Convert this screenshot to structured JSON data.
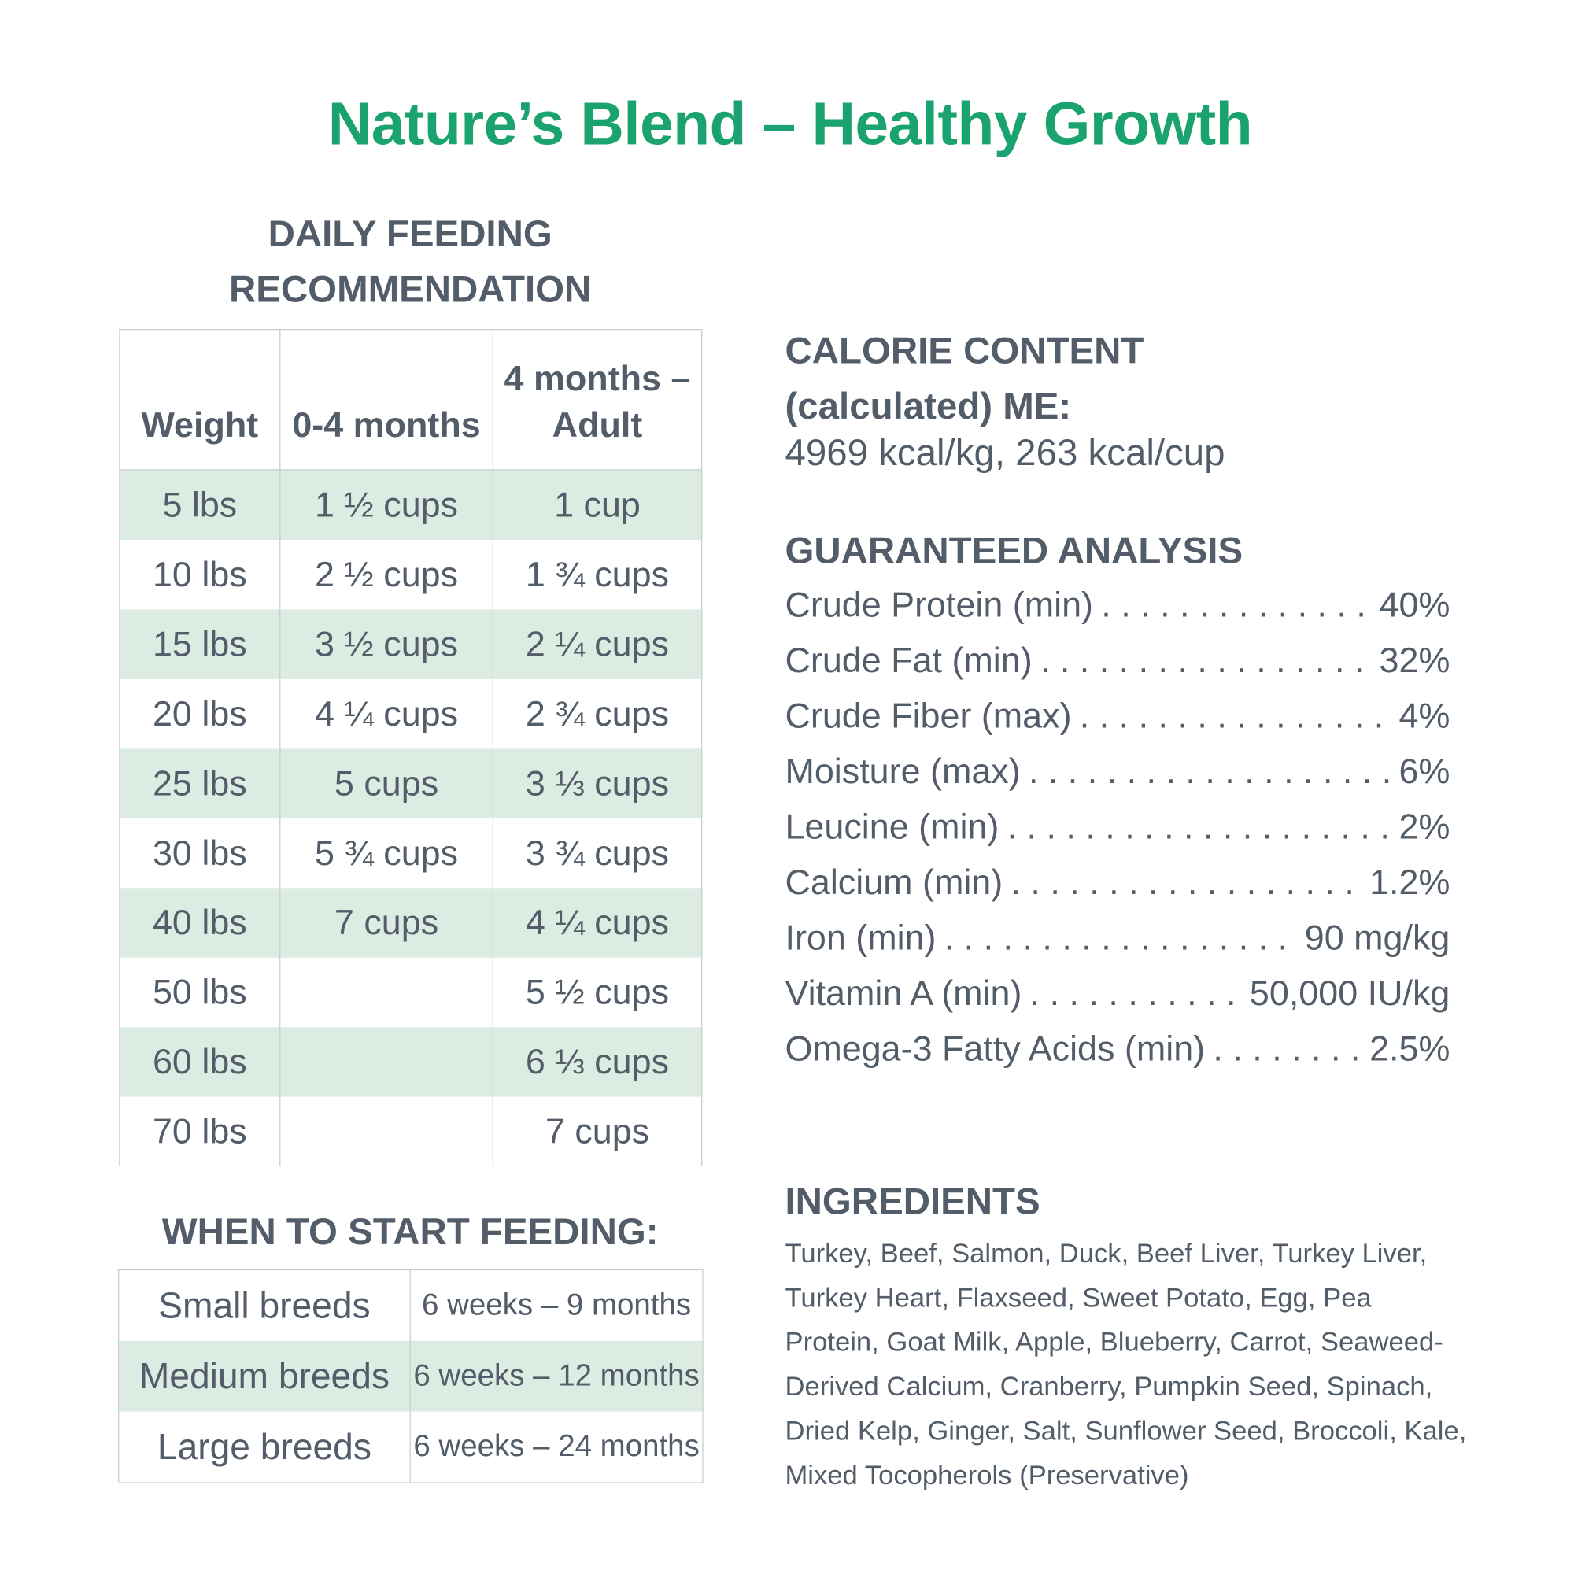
{
  "title": "Nature’s Blend – Healthy Growth",
  "feeding": {
    "heading_line1": "DAILY FEEDING",
    "heading_line2": "RECOMMENDATION",
    "columns": [
      "Weight",
      "0-4 months",
      "4 months – Adult"
    ],
    "rows": [
      [
        "5 lbs",
        "1 ½ cups",
        "1  cup"
      ],
      [
        "10 lbs",
        "2 ½ cups",
        "1 ¾ cups"
      ],
      [
        "15 lbs",
        "3 ½ cups",
        "2 ¼ cups"
      ],
      [
        "20 lbs",
        "4 ¼ cups",
        "2 ¾ cups"
      ],
      [
        "25 lbs",
        "5 cups",
        "3 ⅓ cups"
      ],
      [
        "30 lbs",
        "5 ¾ cups",
        "3 ¾ cups"
      ],
      [
        "40 lbs",
        "7 cups",
        "4 ¼ cups"
      ],
      [
        "50 lbs",
        "",
        "5 ½ cups"
      ],
      [
        "60 lbs",
        "",
        "6 ⅓ cups"
      ],
      [
        "70 lbs",
        "",
        "7 cups"
      ]
    ]
  },
  "start": {
    "heading": "WHEN TO START FEEDING:",
    "rows": [
      [
        "Small breeds",
        "6 weeks – 9 months"
      ],
      [
        "Medium breeds",
        "6 weeks – 12 months"
      ],
      [
        "Large breeds",
        "6 weeks – 24 months"
      ]
    ]
  },
  "calorie": {
    "heading_line1": "CALORIE CONTENT",
    "heading_line2": "(calculated) ME:",
    "value": "4969 kcal/kg, 263 kcal/cup"
  },
  "analysis": {
    "heading": "GUARANTEED ANALYSIS",
    "items": [
      {
        "label": "Crude Protein (min)",
        "value": "40%"
      },
      {
        "label": "Crude Fat (min)",
        "value": "32%"
      },
      {
        "label": "Crude Fiber (max)",
        "value": "4%"
      },
      {
        "label": "Moisture (max)",
        "value": "6%"
      },
      {
        "label": "Leucine (min)",
        "value": "2%"
      },
      {
        "label": "Calcium (min)",
        "value": "1.2%"
      },
      {
        "label": "Iron (min)",
        "value": "90 mg/kg"
      },
      {
        "label": "Vitamin A (min)",
        "value": "50,000 IU/kg"
      },
      {
        "label": "Omega-3 Fatty Acids (min)",
        "value": "2.5%"
      }
    ]
  },
  "ingredients": {
    "heading": "INGREDIENTS",
    "text": "Turkey, Beef, Salmon, Duck, Beef Liver, Turkey Liver, Turkey Heart, Flaxseed, Sweet Potato, Egg, Pea Protein, Goat Milk, Apple, Blueberry, Carrot, Seaweed-Derived Calcium, Cranberry, Pumpkin Seed, Spinach, Dried Kelp, Ginger, Salt, Sunflower Seed, Broccoli, Kale, Mixed Tocopherols (Preservative)"
  }
}
